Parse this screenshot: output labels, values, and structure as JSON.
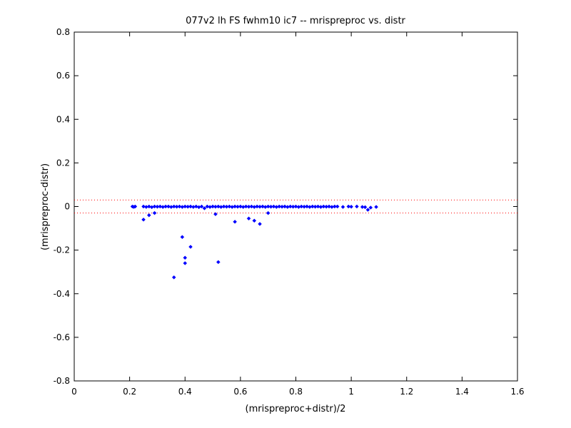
{
  "chart_data": {
    "type": "scatter",
    "title": "077v2 lh FS fwhm10 ic7 -- mrispreproc vs. distr",
    "xlabel": "(mrispreproc+distr)/2",
    "ylabel": "(mrispreproc-distr)",
    "xlim": [
      0,
      1.6
    ],
    "ylim": [
      -0.8,
      0.8
    ],
    "xticks": [
      0,
      0.2,
      0.4,
      0.6,
      0.8,
      1,
      1.2,
      1.4,
      1.6
    ],
    "xtick_labels": [
      "0",
      "0.2",
      "0.4",
      "0.6",
      "0.8",
      "1",
      "1.2",
      "1.4",
      "1.6"
    ],
    "yticks": [
      -0.8,
      -0.6,
      -0.4,
      -0.2,
      0,
      0.2,
      0.4,
      0.6,
      0.8
    ],
    "ytick_labels": [
      "-0.8",
      "-0.6",
      "-0.4",
      "-0.2",
      "0",
      "0.2",
      "0.4",
      "0.6",
      "0.8"
    ],
    "grid": false,
    "series": [
      {
        "color": "#0000ff",
        "marker": "diamond",
        "points": [
          [
            0.21,
            0.0
          ],
          [
            0.215,
            -0.002
          ],
          [
            0.22,
            0.0
          ],
          [
            0.25,
            0.0
          ],
          [
            0.26,
            -0.002
          ],
          [
            0.27,
            0.0
          ],
          [
            0.28,
            -0.003
          ],
          [
            0.29,
            0.0
          ],
          [
            0.3,
            -0.001
          ],
          [
            0.31,
            0.0
          ],
          [
            0.32,
            -0.002
          ],
          [
            0.33,
            0.0
          ],
          [
            0.34,
            0.0
          ],
          [
            0.35,
            -0.002
          ],
          [
            0.36,
            0.0
          ],
          [
            0.37,
            -0.001
          ],
          [
            0.38,
            0.0
          ],
          [
            0.39,
            -0.002
          ],
          [
            0.4,
            0.0
          ],
          [
            0.41,
            -0.001
          ],
          [
            0.42,
            0.0
          ],
          [
            0.43,
            -0.002
          ],
          [
            0.44,
            0.0
          ],
          [
            0.45,
            -0.003
          ],
          [
            0.46,
            0.0
          ],
          [
            0.47,
            -0.008
          ],
          [
            0.48,
            0.0
          ],
          [
            0.49,
            -0.002
          ],
          [
            0.5,
            0.0
          ],
          [
            0.51,
            -0.001
          ],
          [
            0.52,
            0.0
          ],
          [
            0.53,
            -0.002
          ],
          [
            0.54,
            0.0
          ],
          [
            0.55,
            -0.001
          ],
          [
            0.56,
            0.0
          ],
          [
            0.57,
            -0.002
          ],
          [
            0.58,
            0.0
          ],
          [
            0.59,
            -0.001
          ],
          [
            0.6,
            0.0
          ],
          [
            0.61,
            -0.002
          ],
          [
            0.62,
            0.0
          ],
          [
            0.63,
            -0.001
          ],
          [
            0.64,
            0.0
          ],
          [
            0.65,
            -0.002
          ],
          [
            0.66,
            0.0
          ],
          [
            0.67,
            -0.001
          ],
          [
            0.68,
            0.0
          ],
          [
            0.69,
            -0.002
          ],
          [
            0.7,
            0.0
          ],
          [
            0.71,
            -0.001
          ],
          [
            0.72,
            0.0
          ],
          [
            0.73,
            -0.002
          ],
          [
            0.74,
            0.0
          ],
          [
            0.75,
            -0.001
          ],
          [
            0.76,
            0.0
          ],
          [
            0.77,
            -0.002
          ],
          [
            0.78,
            0.0
          ],
          [
            0.79,
            -0.001
          ],
          [
            0.8,
            0.0
          ],
          [
            0.81,
            -0.002
          ],
          [
            0.82,
            0.0
          ],
          [
            0.83,
            -0.001
          ],
          [
            0.84,
            0.0
          ],
          [
            0.85,
            -0.002
          ],
          [
            0.86,
            0.0
          ],
          [
            0.87,
            -0.001
          ],
          [
            0.88,
            0.0
          ],
          [
            0.89,
            -0.002
          ],
          [
            0.9,
            0.0
          ],
          [
            0.91,
            -0.001
          ],
          [
            0.92,
            0.0
          ],
          [
            0.93,
            -0.002
          ],
          [
            0.94,
            0.0
          ],
          [
            0.95,
            0.0
          ],
          [
            0.97,
            -0.002
          ],
          [
            0.99,
            0.0
          ],
          [
            1.0,
            -0.001
          ],
          [
            1.02,
            0.0
          ],
          [
            1.04,
            -0.002
          ],
          [
            1.05,
            -0.003
          ],
          [
            1.06,
            -0.015
          ],
          [
            1.07,
            -0.005
          ],
          [
            1.09,
            -0.002
          ],
          [
            0.25,
            -0.06
          ],
          [
            0.27,
            -0.04
          ],
          [
            0.29,
            -0.03
          ],
          [
            0.39,
            -0.14
          ],
          [
            0.4,
            -0.235
          ],
          [
            0.4,
            -0.26
          ],
          [
            0.42,
            -0.185
          ],
          [
            0.36,
            -0.325
          ],
          [
            0.52,
            -0.255
          ],
          [
            0.51,
            -0.035
          ],
          [
            0.58,
            -0.07
          ],
          [
            0.63,
            -0.055
          ],
          [
            0.65,
            -0.065
          ],
          [
            0.67,
            -0.08
          ],
          [
            0.7,
            -0.03
          ]
        ]
      }
    ],
    "reference_lines": [
      {
        "y": 0.03,
        "color": "#ff0000",
        "style": "dotted"
      },
      {
        "y": -0.03,
        "color": "#ff0000",
        "style": "dotted"
      }
    ]
  }
}
